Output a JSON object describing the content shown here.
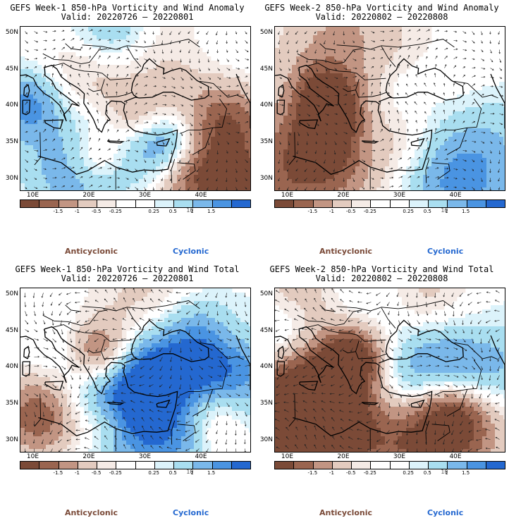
{
  "panels": [
    {
      "title": "GEFS Week-1 850-hPa Vorticity and Wind Anomaly",
      "valid": "Valid: 20220726 – 20220801",
      "style": "anomaly",
      "seed": 3
    },
    {
      "title": "GEFS Week-2 850-hPa Vorticity and Wind Anomaly",
      "valid": "Valid: 20220802 – 20220808",
      "style": "anomaly",
      "seed": 7
    },
    {
      "title": "GEFS Week-1 850-hPa Vorticity and Wind Total",
      "valid": "Valid: 20220726 – 20220801",
      "style": "total",
      "seed": 11
    },
    {
      "title": "GEFS Week-2 850-hPa Vorticity and Wind Total",
      "valid": "Valid: 20220802 – 20220808",
      "style": "total",
      "seed": 13
    }
  ],
  "lat_labels": [
    "50N",
    "45N",
    "40N",
    "35N",
    "30N"
  ],
  "lon_labels": [
    "10E",
    "20E",
    "30E",
    "40E"
  ],
  "colorbar": {
    "labels": [
      "-1.5",
      "-1",
      "-0.5",
      "-0.25",
      "0.25",
      "0.5",
      "1",
      "1.5"
    ],
    "mid_label": "10",
    "colors": [
      "#7b4a37",
      "#9a6550",
      "#c29583",
      "#e3cbbf",
      "#f5ebe6",
      "#ffffff",
      "#ffffff",
      "#dcf3fb",
      "#a9def0",
      "#7ab8ea",
      "#4a94e2",
      "#2468d0"
    ]
  },
  "legend": {
    "anticyclonic": "Anticyclonic",
    "cyclonic": "Cyclonic"
  },
  "colors": {
    "anticyclonic": "#7a4a38",
    "cyclonic": "#2468d0"
  }
}
